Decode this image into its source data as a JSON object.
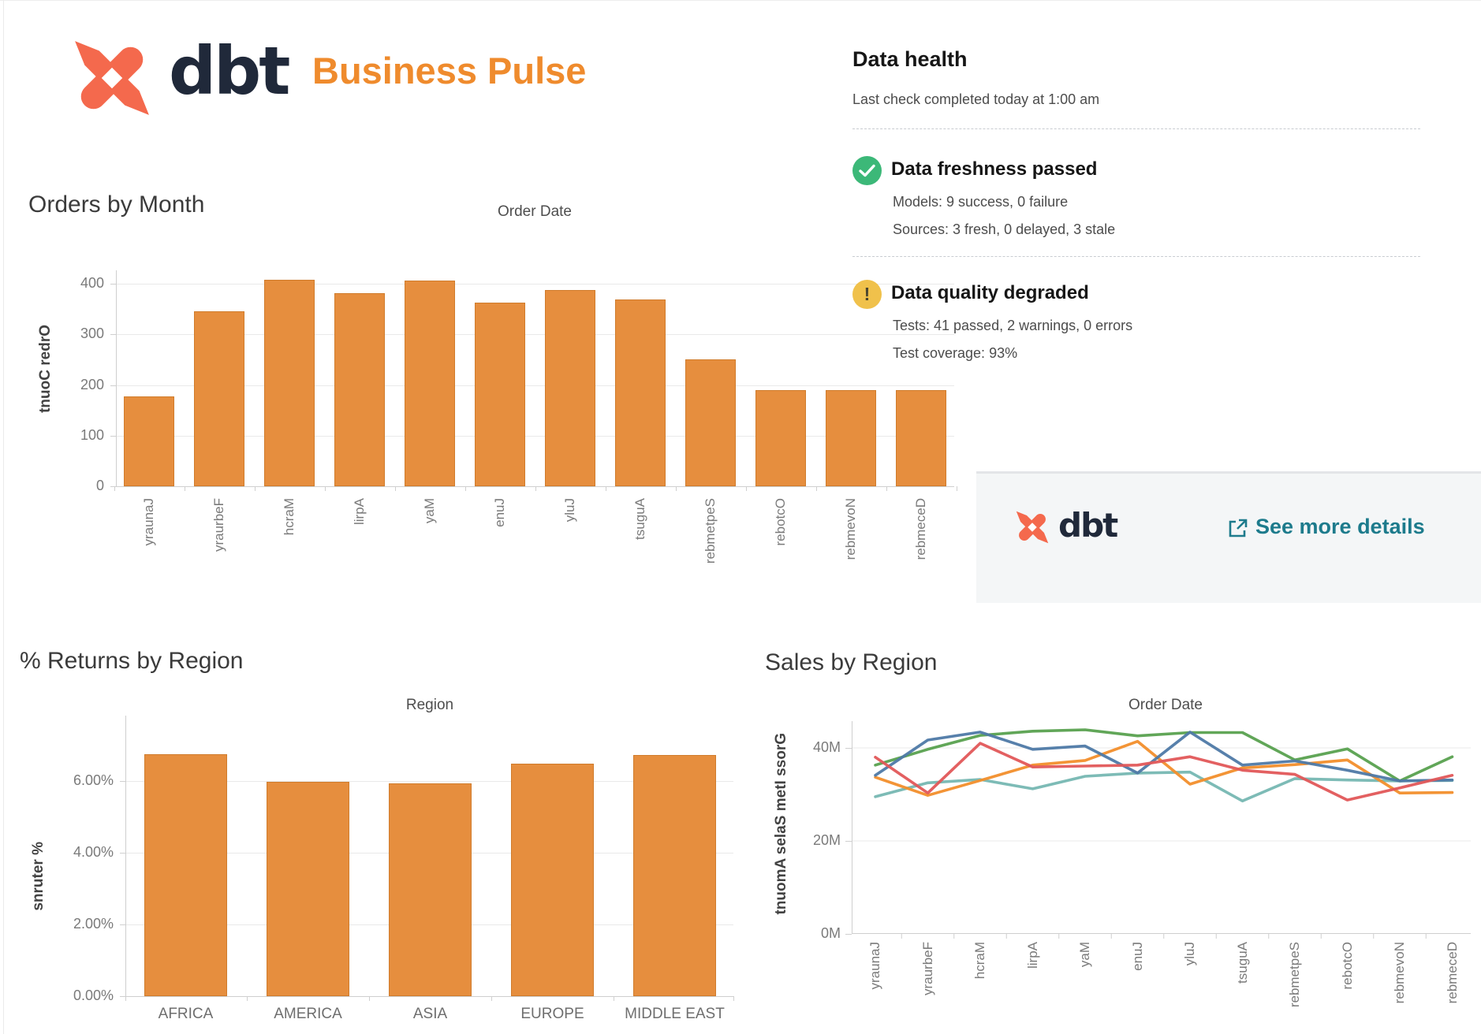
{
  "header": {
    "logo_text": "dbt",
    "title": "Business Pulse"
  },
  "data_health": {
    "title": "Data health",
    "subtitle": "Last check completed today at 1:00 am",
    "items": [
      {
        "icon": "check-circle",
        "icon_color": "#3cb878",
        "title": "Data freshness passed",
        "lines": [
          "Models: 9 success, 0 failure",
          "Sources: 3 fresh, 0 delayed, 3 stale"
        ]
      },
      {
        "icon": "exclamation-circle",
        "icon_color": "#f0c14b",
        "title": "Data quality degraded",
        "lines": [
          "Tests: 41 passed, 2 warnings, 0 errors",
          "Test coverage: 93%"
        ]
      }
    ],
    "footer": {
      "logo_text": "dbt",
      "link_label": "See more details",
      "link_color": "#1d7b8c"
    }
  },
  "colors": {
    "bar_orange": "#e68e3e",
    "brand_coral": "#f4694d",
    "brand_navy": "#20293a",
    "title_orange": "#ef8b2d"
  },
  "chart_data": [
    {
      "type": "bar",
      "title": "Orders by Month",
      "inner_title": "Order Date",
      "ylabel": "Order Count",
      "categories": [
        "January",
        "February",
        "March",
        "April",
        "May",
        "June",
        "July",
        "August",
        "September",
        "October",
        "November",
        "December"
      ],
      "values": [
        177,
        346,
        408,
        381,
        406,
        362,
        388,
        369,
        251,
        190,
        190,
        190
      ],
      "yticks": [
        0,
        100,
        200,
        300,
        400
      ],
      "ylim": [
        0,
        426
      ],
      "grid": true,
      "bar_color": "#e68e3e"
    },
    {
      "type": "bar",
      "title": "% Returns by Region",
      "inner_title": "Region",
      "ylabel": "% returns",
      "categories": [
        "AFRICA",
        "AMERICA",
        "ASIA",
        "EUROPE",
        "MIDDLE EAST"
      ],
      "values": [
        6.75,
        5.98,
        5.93,
        6.48,
        6.73
      ],
      "ytick_labels": [
        "0.00%",
        "2.00%",
        "4.00%",
        "6.00%"
      ],
      "yticks": [
        0,
        2,
        4,
        6
      ],
      "ylim": [
        0,
        7.8
      ],
      "grid": true,
      "bar_color": "#e68e3e"
    },
    {
      "type": "line",
      "title": "Sales by Region",
      "inner_title": "Order Date",
      "ylabel": "Gross Item Sales Amount",
      "x": [
        "January",
        "February",
        "March",
        "April",
        "May",
        "June",
        "July",
        "August",
        "September",
        "October",
        "November",
        "December"
      ],
      "ytick_labels": [
        "0M",
        "20M",
        "40M"
      ],
      "yticks": [
        0,
        20,
        40
      ],
      "ylim": [
        0,
        45.8
      ],
      "grid": true,
      "legend": "none (not visible)",
      "unit": "millions",
      "series": [
        {
          "name": "teal",
          "color": "#76b7b2",
          "values": [
            29.5,
            32.5,
            33.2,
            31.2,
            33.9,
            34.6,
            34.8,
            28.6,
            33.4,
            33.1,
            32.9,
            33.0
          ]
        },
        {
          "name": "orange",
          "color": "#f28e2b",
          "values": [
            33.7,
            29.8,
            33.0,
            36.3,
            37.3,
            41.4,
            32.2,
            35.7,
            36.4,
            37.4,
            30.3,
            30.4
          ]
        },
        {
          "name": "green",
          "color": "#59a14f",
          "values": [
            36.3,
            39.7,
            42.7,
            43.6,
            43.9,
            42.6,
            43.3,
            43.3,
            37.4,
            39.8,
            32.9,
            38.1
          ]
        },
        {
          "name": "blue",
          "color": "#4e79a7",
          "values": [
            34.1,
            41.7,
            43.4,
            39.7,
            40.4,
            34.6,
            43.4,
            36.3,
            37.2,
            35.2,
            32.9,
            33.1
          ]
        },
        {
          "name": "red",
          "color": "#e15759",
          "values": [
            38.0,
            30.3,
            41.0,
            35.9,
            36.1,
            36.3,
            38.1,
            35.2,
            34.3,
            28.8,
            31.4,
            34.1
          ]
        }
      ]
    }
  ]
}
